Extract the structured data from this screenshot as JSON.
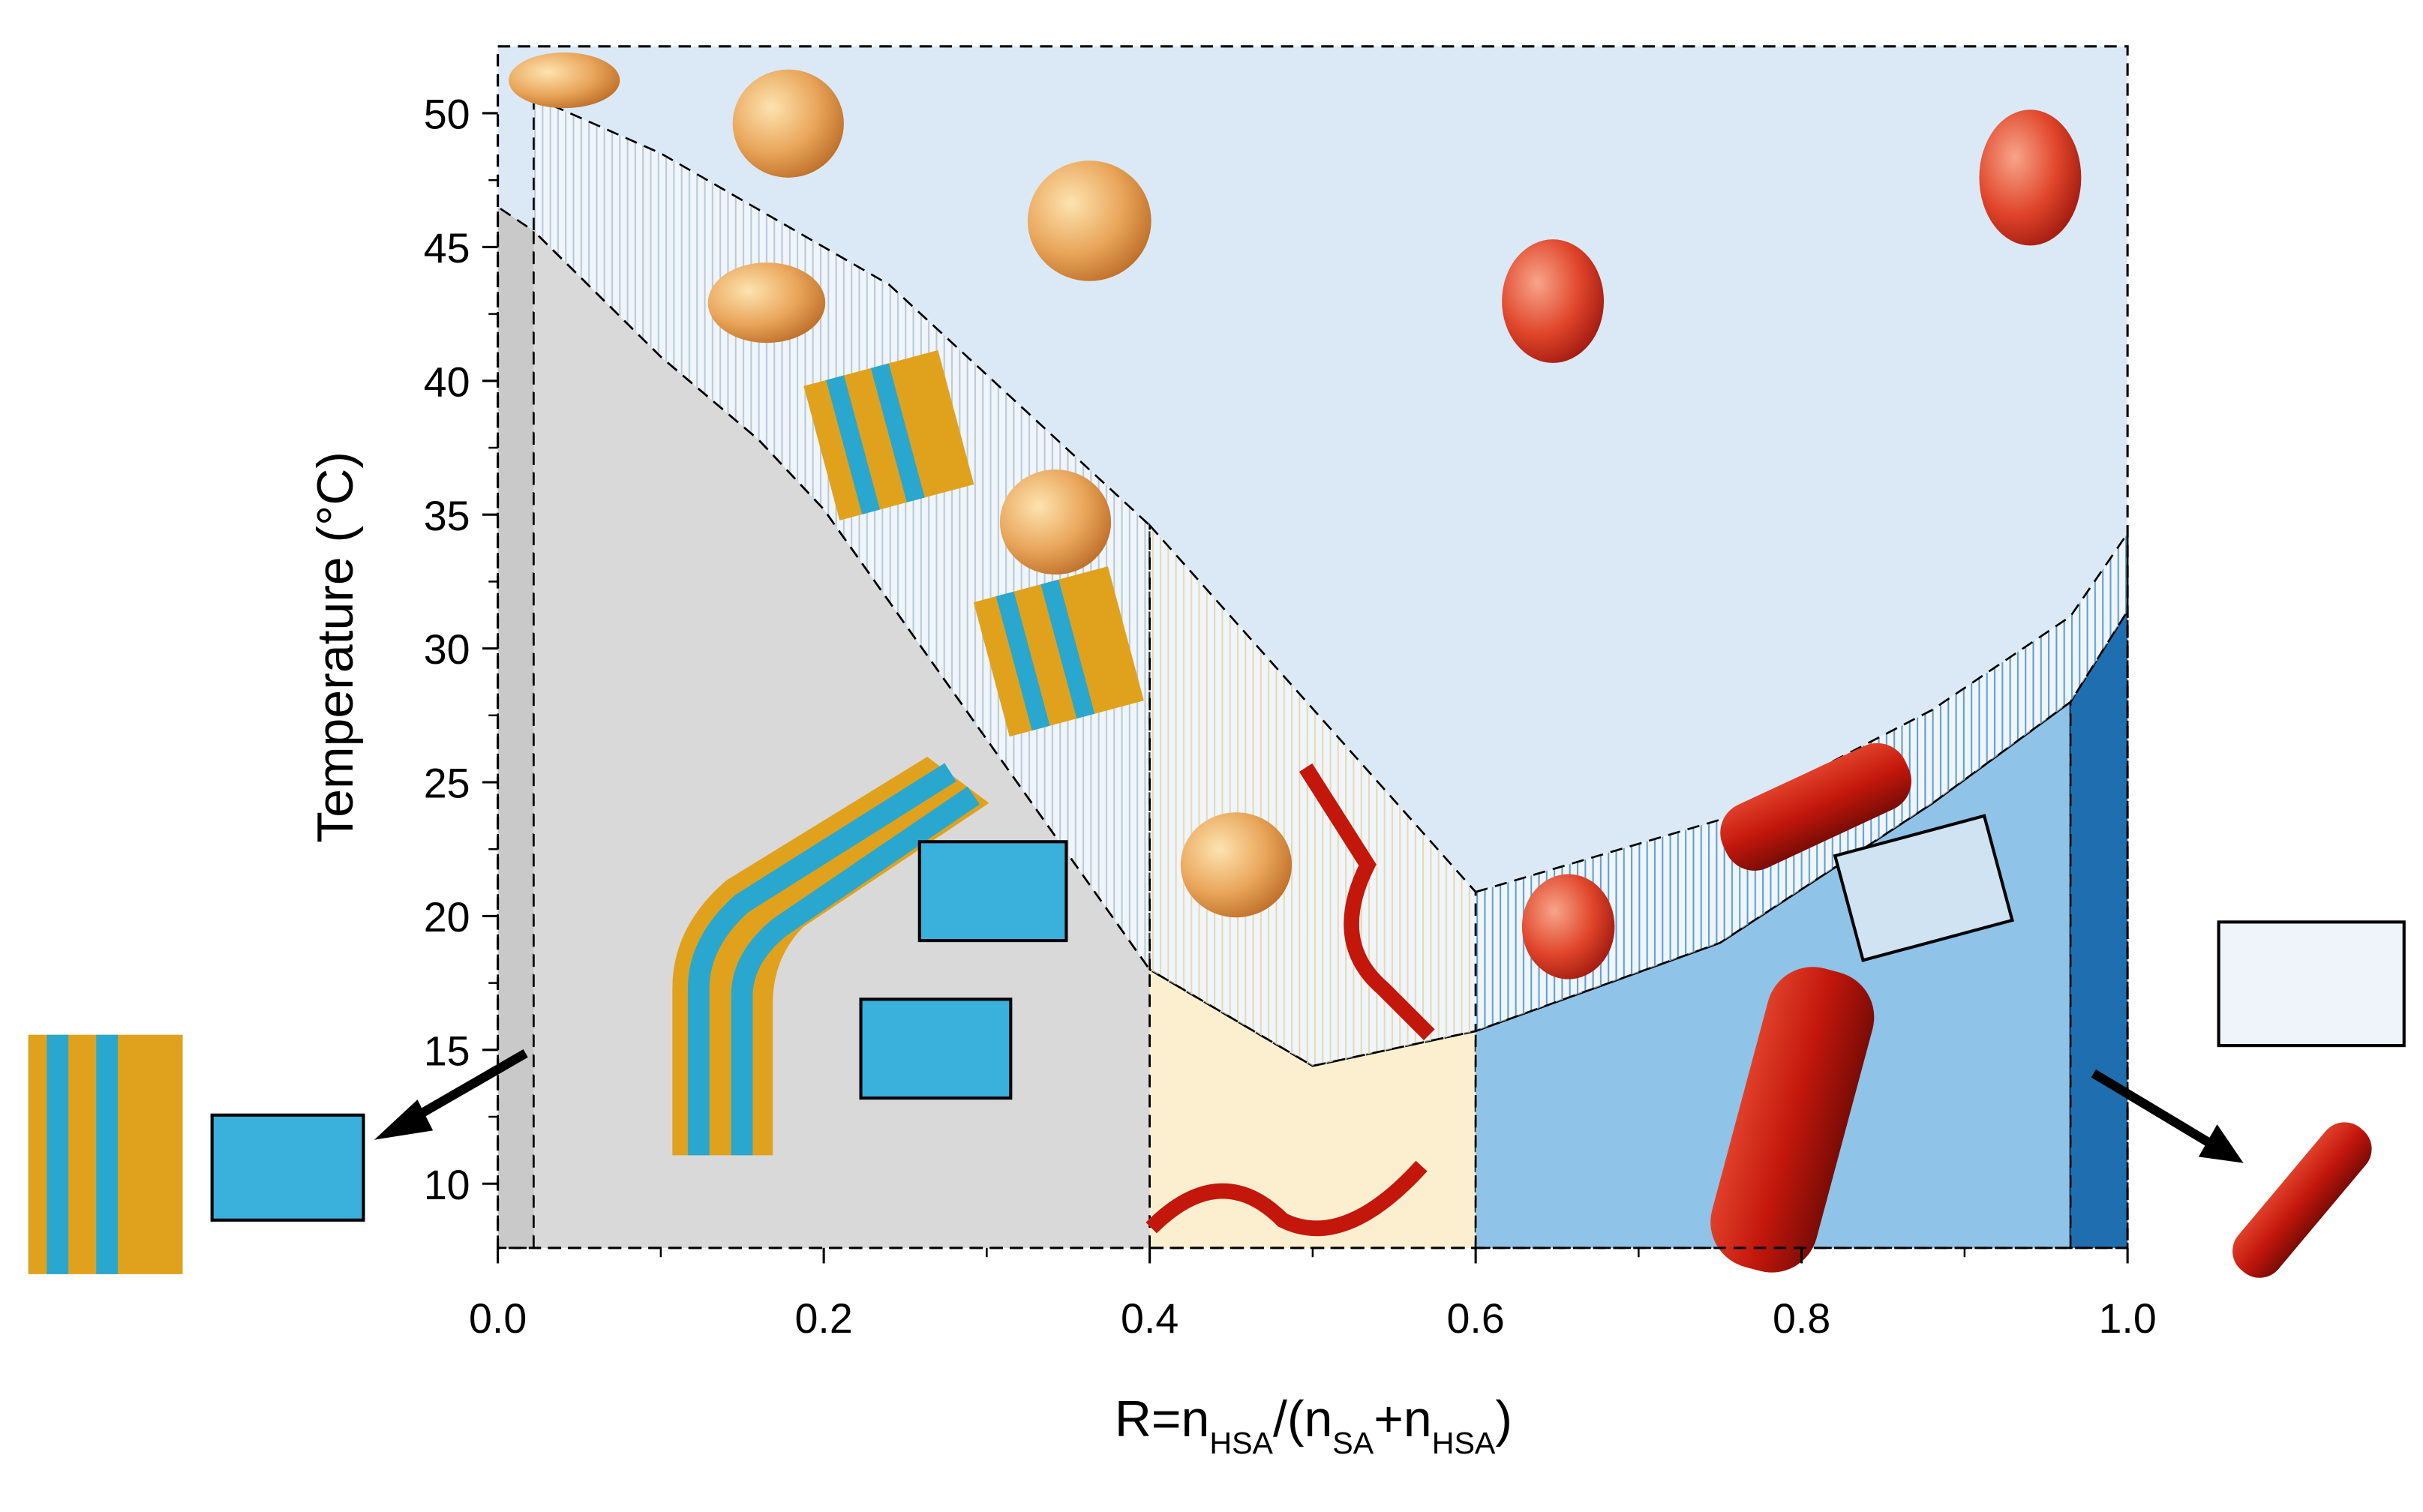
{
  "chart_data": {
    "type": "phase-diagram",
    "ylabel": "Temperature (°C)",
    "xlabel_parts": [
      {
        "text": "R=n"
      },
      {
        "text": "HSA",
        "sub": true
      },
      {
        "text": "/(n"
      },
      {
        "text": "SA",
        "sub": true
      },
      {
        "text": "+n"
      },
      {
        "text": "HSA",
        "sub": true
      },
      {
        "text": ")"
      }
    ],
    "xlim": [
      0,
      1
    ],
    "ylim": [
      7.6,
      52.5
    ],
    "xticks": [
      {
        "value": 0,
        "label": "0.0"
      },
      0.2,
      0.4,
      0.6,
      0.8,
      {
        "value": 1,
        "label": "1.0"
      }
    ],
    "xminorticks": [
      0.1,
      0.3,
      0.5,
      0.7,
      0.9
    ],
    "yticks": [
      10,
      15,
      20,
      25,
      30,
      35,
      40,
      45,
      50
    ],
    "yminorticks": [
      12.5,
      17.5,
      22.5,
      27.5,
      32.5,
      37.5,
      42.5,
      47.5
    ],
    "background": "#dbe9f6",
    "regions": [
      {
        "x": [
          0,
          0,
          0.022,
          0.022
        ],
        "y": [
          7.6,
          46.5,
          45.6,
          7.6
        ],
        "color": "#c9c9c9",
        "hatch": false
      },
      {
        "x": [
          0.022,
          0.022,
          0.1,
          0.16,
          0.2,
          0.4,
          0.4
        ],
        "y": [
          7.6,
          45.6,
          40.9,
          37.8,
          35.2,
          18,
          7.6
        ],
        "color": "#d9d9d9",
        "hatch": false
      },
      {
        "x": [
          0.022,
          0.1,
          0.24,
          0.4,
          0.4,
          0.2,
          0.16,
          0.1,
          0.022
        ],
        "y": [
          50.6,
          48.5,
          43.6,
          34.6,
          18,
          35.2,
          37.8,
          40.9,
          45.6
        ],
        "color": "#b9c9d8",
        "hatch": true
      },
      {
        "x": [
          0.4,
          0.4,
          0.5,
          0.6,
          0.6
        ],
        "y": [
          7.6,
          18,
          14.4,
          15.7,
          7.6
        ],
        "color": "#fbefd0",
        "hatch": false
      },
      {
        "x": [
          0.4,
          0.6,
          0.6,
          0.5,
          0.4
        ],
        "y": [
          34.6,
          20.9,
          15.7,
          14.4,
          18
        ],
        "color": "#e6d9b4",
        "hatch": true
      },
      {
        "x": [
          0.6,
          0.6,
          0.75,
          0.88,
          0.965,
          0.965
        ],
        "y": [
          7.6,
          15.7,
          19,
          24.2,
          28,
          7.6
        ],
        "color": "#8fc3e8",
        "hatch": false
      },
      {
        "x": [
          0.965,
          0.965,
          1,
          1
        ],
        "y": [
          7.6,
          28,
          31.4,
          7.6
        ],
        "color": "#1f6fb0",
        "hatch": false
      },
      {
        "x": [
          0.6,
          0.75,
          0.88,
          0.965,
          1,
          1,
          0.965,
          0.88,
          0.75,
          0.6
        ],
        "y": [
          20.9,
          23.6,
          27.7,
          31.2,
          34.3,
          31.4,
          28,
          24.2,
          19,
          15.7
        ],
        "color": "#5f9fd0",
        "hatch": true
      }
    ]
  }
}
